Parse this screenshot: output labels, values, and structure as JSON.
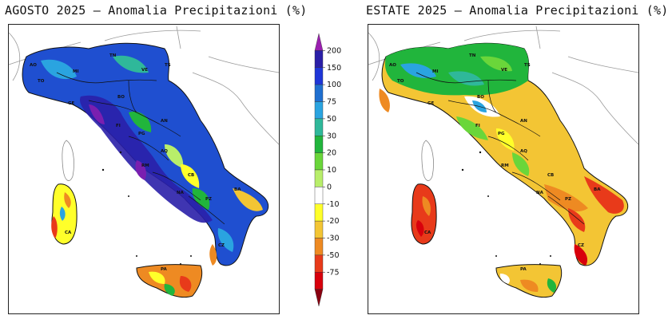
{
  "maps": [
    {
      "id": "agosto",
      "title": "AGOSTO 2025 – Anomalia Precipitazioni (%)",
      "region_labels": [
        "AO",
        "TO",
        "MI",
        "TN",
        "VE",
        "TS",
        "GE",
        "BO",
        "FI",
        "AN",
        "PG",
        "AQ",
        "RM",
        "CB",
        "NA",
        "BA",
        "PZ",
        "CZ",
        "PA",
        "CA"
      ]
    },
    {
      "id": "estate",
      "title": "ESTATE 2025 – Anomalia Precipitazioni (%)",
      "region_labels": [
        "AO",
        "TO",
        "MI",
        "TN",
        "VE",
        "TS",
        "GE",
        "BO",
        "FI",
        "AN",
        "PG",
        "AQ",
        "RM",
        "CB",
        "NA",
        "BA",
        "PZ",
        "CZ",
        "PA",
        "CA"
      ]
    }
  ],
  "colorbar": {
    "labels": [
      "200",
      "150",
      "100",
      "75",
      "50",
      "30",
      "20",
      "10",
      "0",
      "-10",
      "-20",
      "-30",
      "-50",
      "-75"
    ],
    "colors": [
      "#9a1fb0",
      "#2a1fa8",
      "#1e36d8",
      "#1f6fd0",
      "#2aa4e0",
      "#2fb89a",
      "#21b53c",
      "#6ad63a",
      "#b8ee6a",
      "#ffffff",
      "#ffff2a",
      "#f3c534",
      "#ee8a22",
      "#e83a1a",
      "#d8000c",
      "#8a0010"
    ]
  }
}
